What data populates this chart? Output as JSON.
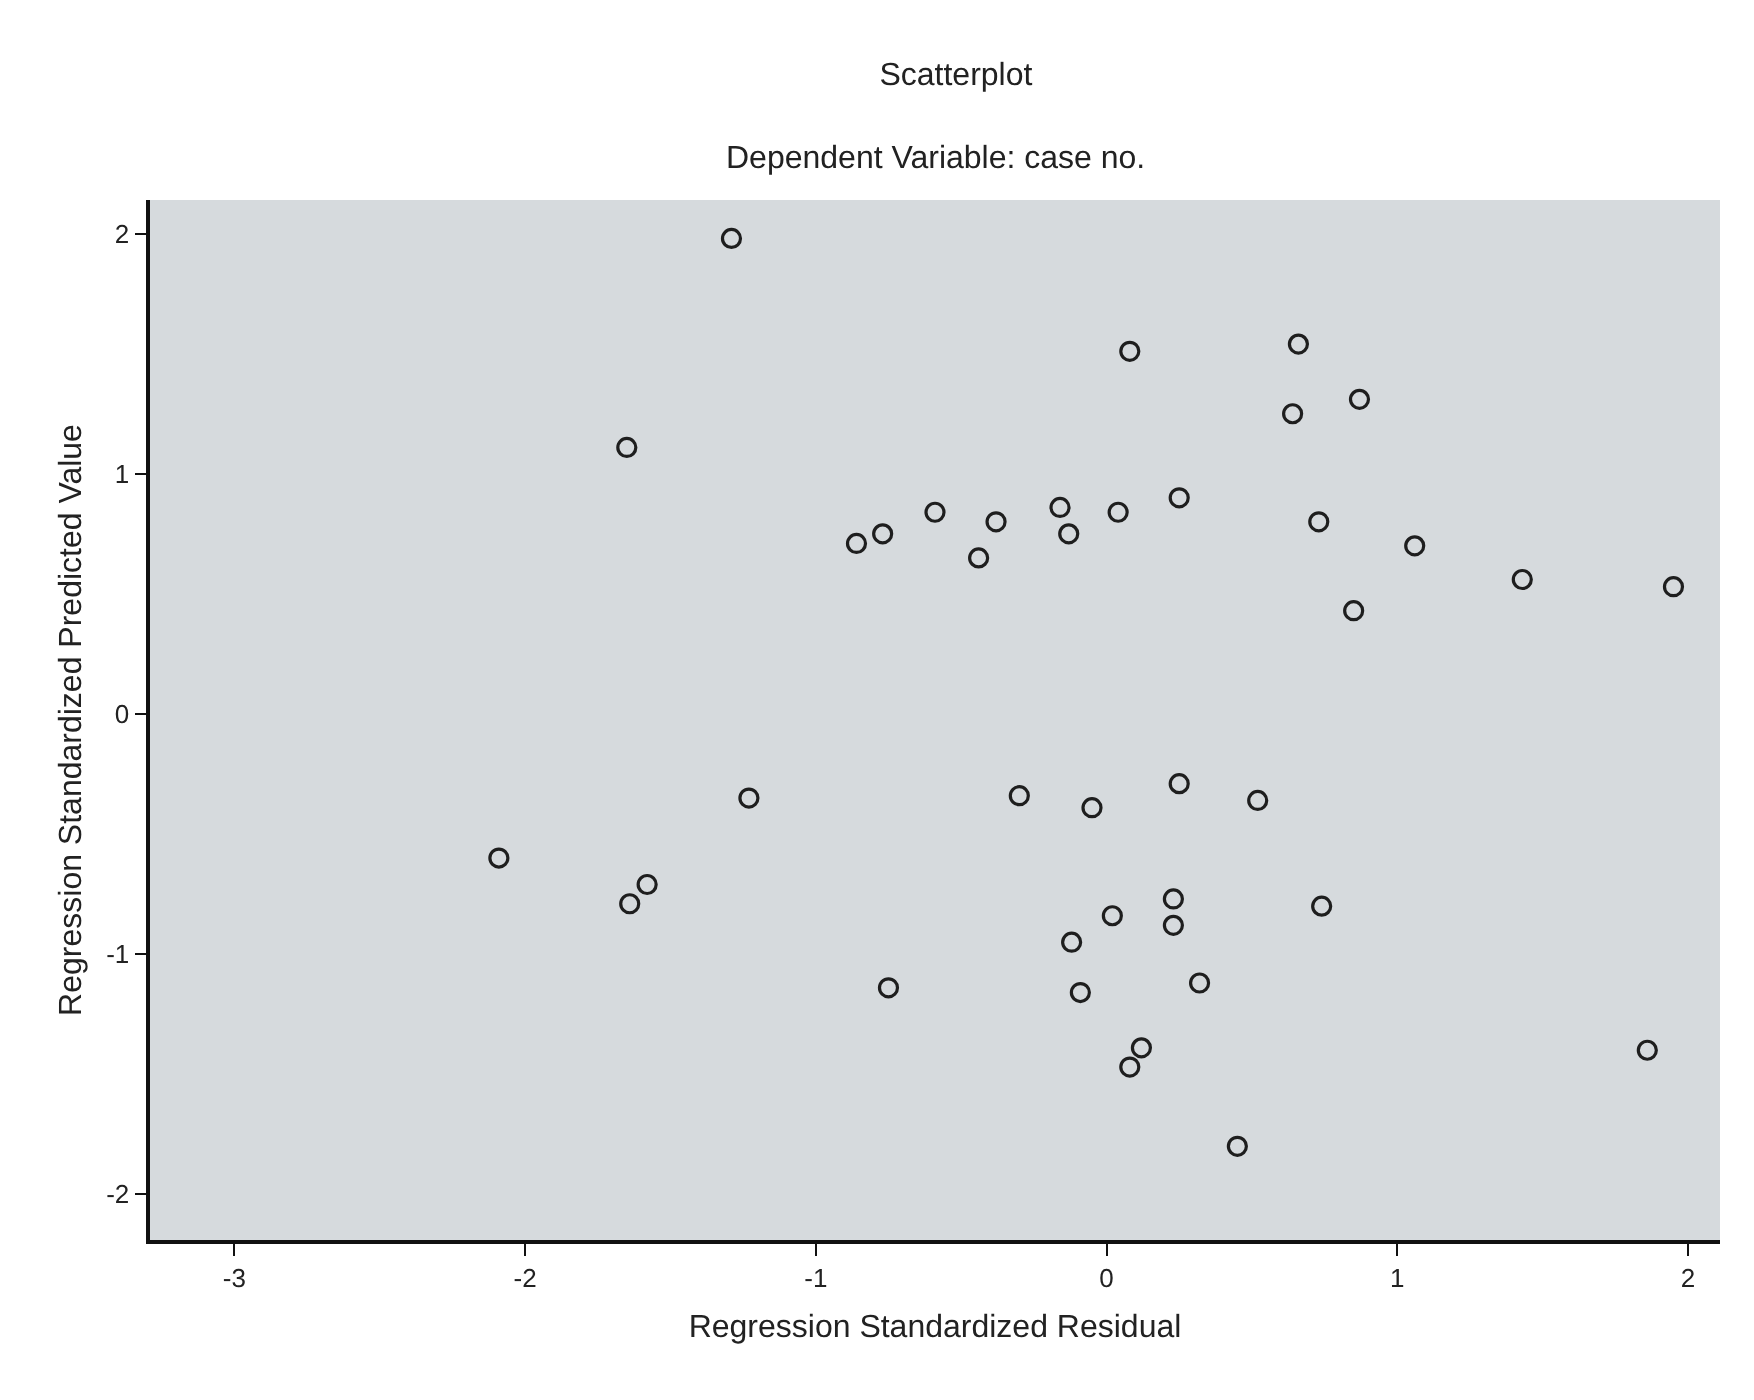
{
  "chart_data": {
    "type": "scatter",
    "title": "Scatterplot",
    "subtitle": "Dependent Variable: case no.",
    "xlabel": "Regression Standardized Residual",
    "ylabel": "Regression Standardized Predicted Value",
    "x": [
      -1.29,
      -1.65,
      -0.86,
      -0.77,
      -0.59,
      -0.38,
      -0.44,
      -0.16,
      -0.13,
      0.04,
      0.25,
      0.08,
      0.66,
      0.64,
      0.87,
      0.73,
      1.06,
      0.85,
      1.43,
      1.95,
      -1.23,
      -2.09,
      -1.58,
      -1.64,
      -0.75,
      -0.3,
      -0.05,
      0.25,
      0.52,
      0.23,
      0.23,
      0.02,
      -0.12,
      0.74,
      -0.09,
      0.32,
      0.12,
      0.08,
      0.45,
      1.86
    ],
    "series": [
      {
        "color": "#1e1e1e",
        "values": [
          1.98,
          1.11,
          0.71,
          0.75,
          0.84,
          0.8,
          0.65,
          0.86,
          0.75,
          0.84,
          0.9,
          1.51,
          1.54,
          1.25,
          1.31,
          0.8,
          0.7,
          0.43,
          0.56,
          0.53,
          -0.35,
          -0.6,
          -0.71,
          -0.79,
          -1.14,
          -0.34,
          -0.39,
          -0.29,
          -0.36,
          -0.77,
          -0.88,
          -0.84,
          -0.95,
          -0.8,
          -1.16,
          -1.12,
          -1.39,
          -1.47,
          -1.8,
          -1.4
        ]
      }
    ],
    "xlim": [
      -3.29,
      2.11
    ],
    "ylim": [
      -2.19,
      2.14
    ],
    "xticks": [
      -3,
      -2,
      -1,
      0,
      1,
      2
    ],
    "yticks": [
      -2,
      -1,
      0,
      1,
      2
    ],
    "marker": "circle",
    "grid": false
  }
}
